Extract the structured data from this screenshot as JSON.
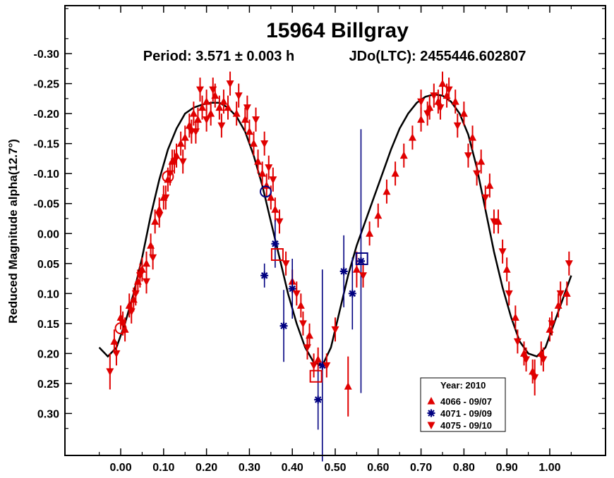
{
  "chart_data": {
    "type": "scatter",
    "title": "15964 Billgray",
    "subtitle_period": "Period: 3.571 ± 0.003 h",
    "subtitle_epoch": "JDo(LTC): 2455446.602807",
    "ylabel": "Reduced Magnitude alpha(12.7°)",
    "xlabel": "",
    "xlim": [
      -0.13,
      1.13
    ],
    "ylim": [
      -0.38,
      0.37
    ],
    "y_inverted": true,
    "x_ticks": [
      0.0,
      0.1,
      0.2,
      0.3,
      0.4,
      0.5,
      0.6,
      0.7,
      0.8,
      0.9,
      1.0
    ],
    "x_tick_labels": [
      "0.00",
      "0.10",
      "0.20",
      "0.30",
      "0.40",
      "0.50",
      "0.60",
      "0.70",
      "0.80",
      "0.90",
      "1.00"
    ],
    "y_ticks": [
      -0.3,
      -0.25,
      -0.2,
      -0.15,
      -0.1,
      -0.05,
      0.0,
      0.05,
      0.1,
      0.15,
      0.2,
      0.25,
      0.3
    ],
    "y_tick_labels": [
      "-0.30",
      "-0.25",
      "-0.20",
      "-0.15",
      "-0.10",
      "-0.05",
      "0.00",
      "0.05",
      "0.10",
      "0.15",
      "0.20",
      "0.25",
      "0.30"
    ],
    "legend": {
      "title": "Year: 2010",
      "position": "bottom-right",
      "entries": [
        {
          "label": "4066 - 09/07",
          "marker": "triangle-up",
          "color": "#e00000"
        },
        {
          "label": "4071 - 09/09",
          "marker": "asterisk",
          "color": "#000080"
        },
        {
          "label": "4075 - 09/10",
          "marker": "triangle-down",
          "color": "#e00000"
        }
      ]
    },
    "colors": {
      "red": "#e00000",
      "navy": "#000080",
      "curve": "#000000"
    },
    "fit_curve": {
      "description": "Fourier fit",
      "x": [
        -0.05,
        -0.03,
        -0.01,
        0.01,
        0.03,
        0.05,
        0.07,
        0.09,
        0.11,
        0.13,
        0.15,
        0.17,
        0.19,
        0.21,
        0.23,
        0.25,
        0.27,
        0.29,
        0.31,
        0.33,
        0.35,
        0.37,
        0.39,
        0.41,
        0.43,
        0.45,
        0.47,
        0.49,
        0.51,
        0.53,
        0.55,
        0.57,
        0.59,
        0.61,
        0.63,
        0.65,
        0.67,
        0.69,
        0.71,
        0.73,
        0.75,
        0.77,
        0.79,
        0.81,
        0.83,
        0.85,
        0.87,
        0.89,
        0.91,
        0.93,
        0.95,
        0.97,
        0.99,
        1.01,
        1.03,
        1.05
      ],
      "y": [
        0.19,
        0.205,
        0.19,
        0.15,
        0.1,
        0.04,
        -0.03,
        -0.09,
        -0.14,
        -0.175,
        -0.2,
        -0.21,
        -0.215,
        -0.218,
        -0.218,
        -0.21,
        -0.195,
        -0.17,
        -0.13,
        -0.08,
        -0.02,
        0.04,
        0.1,
        0.15,
        0.19,
        0.215,
        0.22,
        0.19,
        0.13,
        0.07,
        0.02,
        -0.02,
        -0.06,
        -0.1,
        -0.14,
        -0.175,
        -0.2,
        -0.218,
        -0.228,
        -0.232,
        -0.23,
        -0.22,
        -0.2,
        -0.165,
        -0.11,
        -0.04,
        0.03,
        0.09,
        0.14,
        0.18,
        0.2,
        0.205,
        0.19,
        0.15,
        0.11,
        0.07
      ]
    },
    "series": [
      {
        "name": "4066 - 09/07",
        "marker": "triangle-up",
        "color": "#e00000",
        "points": [
          [
            -0.015,
            0.18,
            0.02
          ],
          [
            0.0,
            0.14,
            0.02
          ],
          [
            0.01,
            0.16,
            0.02
          ],
          [
            0.02,
            0.12,
            0.02
          ],
          [
            0.03,
            0.11,
            0.02
          ],
          [
            0.04,
            0.08,
            0.02
          ],
          [
            0.05,
            0.06,
            0.02
          ],
          [
            0.06,
            0.05,
            0.02
          ],
          [
            0.07,
            0.02,
            0.02
          ],
          [
            0.08,
            -0.02,
            0.02
          ],
          [
            0.09,
            -0.04,
            0.02
          ],
          [
            0.1,
            -0.06,
            0.02
          ],
          [
            0.11,
            -0.09,
            0.02
          ],
          [
            0.12,
            -0.12,
            0.02
          ],
          [
            0.13,
            -0.13,
            0.02
          ],
          [
            0.14,
            -0.15,
            0.02
          ],
          [
            0.15,
            -0.16,
            0.02
          ],
          [
            0.16,
            -0.18,
            0.02
          ],
          [
            0.17,
            -0.2,
            0.02
          ],
          [
            0.18,
            -0.19,
            0.02
          ],
          [
            0.19,
            -0.21,
            0.02
          ],
          [
            0.2,
            -0.22,
            0.02
          ],
          [
            0.21,
            -0.2,
            0.02
          ],
          [
            0.22,
            -0.23,
            0.02
          ],
          [
            0.23,
            -0.21,
            0.02
          ],
          [
            0.24,
            -0.22,
            0.02
          ],
          [
            0.25,
            -0.21,
            0.02
          ],
          [
            0.27,
            -0.2,
            0.02
          ],
          [
            0.29,
            -0.19,
            0.02
          ],
          [
            0.3,
            -0.17,
            0.02
          ],
          [
            0.31,
            -0.15,
            0.02
          ],
          [
            0.32,
            -0.12,
            0.02
          ],
          [
            0.33,
            -0.1,
            0.02
          ],
          [
            0.34,
            -0.08,
            0.02
          ],
          [
            0.35,
            -0.06,
            0.02
          ],
          [
            0.36,
            -0.04,
            0.02
          ],
          [
            0.4,
            0.08,
            0.02
          ],
          [
            0.42,
            0.12,
            0.02
          ],
          [
            0.44,
            0.17,
            0.02
          ],
          [
            0.46,
            0.21,
            0.02
          ],
          [
            0.53,
            0.255,
            0.05
          ],
          [
            0.55,
            0.06,
            0.03
          ],
          [
            0.58,
            0.0,
            0.02
          ],
          [
            0.6,
            -0.03,
            0.02
          ],
          [
            0.62,
            -0.07,
            0.02
          ],
          [
            0.64,
            -0.1,
            0.02
          ],
          [
            0.66,
            -0.13,
            0.02
          ],
          [
            0.68,
            -0.16,
            0.02
          ],
          [
            0.7,
            -0.19,
            0.02
          ],
          [
            0.72,
            -0.21,
            0.02
          ],
          [
            0.74,
            -0.22,
            0.02
          ],
          [
            0.75,
            -0.25,
            0.02
          ],
          [
            0.76,
            -0.23,
            0.02
          ],
          [
            0.78,
            -0.22,
            0.02
          ],
          [
            0.8,
            -0.2,
            0.02
          ],
          [
            0.82,
            -0.16,
            0.02
          ],
          [
            0.84,
            -0.12,
            0.02
          ],
          [
            0.86,
            -0.08,
            0.02
          ],
          [
            0.88,
            -0.02,
            0.02
          ],
          [
            0.9,
            0.06,
            0.02
          ],
          [
            0.92,
            0.14,
            0.02
          ],
          [
            0.94,
            0.2,
            0.02
          ],
          [
            0.96,
            0.23,
            0.02
          ],
          [
            0.98,
            0.2,
            0.02
          ],
          [
            1.0,
            0.16,
            0.02
          ],
          [
            1.02,
            0.12,
            0.02
          ],
          [
            1.04,
            0.1,
            0.02
          ]
        ]
      },
      {
        "name": "4071 - 09/09",
        "marker": "asterisk",
        "color": "#000080",
        "points": [
          [
            0.335,
            0.07,
            0.02
          ],
          [
            0.36,
            0.017,
            0.04
          ],
          [
            0.38,
            0.154,
            0.06
          ],
          [
            0.4,
            0.092,
            0.05
          ],
          [
            0.46,
            0.277,
            0.05
          ],
          [
            0.47,
            0.22,
            0.16
          ],
          [
            0.52,
            0.063,
            0.06
          ],
          [
            0.54,
            0.1,
            0.06
          ],
          [
            0.56,
            0.046,
            0.22
          ]
        ]
      },
      {
        "name": "4075 - 09/10",
        "marker": "triangle-down",
        "color": "#e00000",
        "points": [
          [
            -0.025,
            0.23,
            0.03
          ],
          [
            -0.01,
            0.2,
            0.02
          ],
          [
            0.005,
            0.15,
            0.02
          ],
          [
            0.025,
            0.13,
            0.02
          ],
          [
            0.035,
            0.1,
            0.02
          ],
          [
            0.045,
            0.07,
            0.02
          ],
          [
            0.06,
            0.08,
            0.02
          ],
          [
            0.075,
            0.04,
            0.02
          ],
          [
            0.09,
            -0.03,
            0.02
          ],
          [
            0.105,
            -0.06,
            0.02
          ],
          [
            0.115,
            -0.1,
            0.02
          ],
          [
            0.125,
            -0.12,
            0.02
          ],
          [
            0.145,
            -0.12,
            0.02
          ],
          [
            0.165,
            -0.17,
            0.02
          ],
          [
            0.175,
            -0.17,
            0.02
          ],
          [
            0.185,
            -0.24,
            0.02
          ],
          [
            0.2,
            -0.19,
            0.02
          ],
          [
            0.215,
            -0.24,
            0.02
          ],
          [
            0.235,
            -0.18,
            0.02
          ],
          [
            0.255,
            -0.25,
            0.02
          ],
          [
            0.275,
            -0.23,
            0.02
          ],
          [
            0.295,
            -0.21,
            0.02
          ],
          [
            0.315,
            -0.19,
            0.02
          ],
          [
            0.335,
            -0.15,
            0.02
          ],
          [
            0.345,
            -0.11,
            0.02
          ],
          [
            0.355,
            -0.09,
            0.02
          ],
          [
            0.37,
            -0.02,
            0.02
          ],
          [
            0.385,
            0.05,
            0.02
          ],
          [
            0.41,
            0.1,
            0.02
          ],
          [
            0.425,
            0.15,
            0.02
          ],
          [
            0.435,
            0.19,
            0.02
          ],
          [
            0.45,
            0.22,
            0.02
          ],
          [
            0.48,
            0.22,
            0.02
          ],
          [
            0.5,
            0.16,
            0.02
          ],
          [
            0.565,
            0.07,
            0.02
          ],
          [
            0.7,
            -0.22,
            0.02
          ],
          [
            0.715,
            -0.2,
            0.02
          ],
          [
            0.73,
            -0.23,
            0.02
          ],
          [
            0.745,
            -0.21,
            0.02
          ],
          [
            0.765,
            -0.24,
            0.02
          ],
          [
            0.785,
            -0.18,
            0.02
          ],
          [
            0.81,
            -0.13,
            0.02
          ],
          [
            0.83,
            -0.1,
            0.02
          ],
          [
            0.85,
            -0.06,
            0.02
          ],
          [
            0.87,
            -0.02,
            0.02
          ],
          [
            0.89,
            0.03,
            0.02
          ],
          [
            0.905,
            0.1,
            0.02
          ],
          [
            0.925,
            0.18,
            0.02
          ],
          [
            0.945,
            0.21,
            0.02
          ],
          [
            0.965,
            0.24,
            0.03
          ],
          [
            0.985,
            0.21,
            0.02
          ],
          [
            1.005,
            0.15,
            0.02
          ],
          [
            1.025,
            0.1,
            0.02
          ],
          [
            1.045,
            0.05,
            0.02
          ]
        ]
      }
    ],
    "open_markers": [
      {
        "shape": "circle",
        "color": "#e00000",
        "points": [
          [
            0.0,
            0.158
          ],
          [
            0.11,
            -0.095
          ]
        ]
      },
      {
        "shape": "circle",
        "color": "#000080",
        "points": [
          [
            0.338,
            -0.07
          ]
        ]
      },
      {
        "shape": "square",
        "color": "#e00000",
        "points": [
          [
            0.365,
            0.035
          ],
          [
            0.455,
            0.238
          ]
        ]
      },
      {
        "shape": "square",
        "color": "#000080",
        "points": [
          [
            0.562,
            0.042
          ]
        ]
      }
    ]
  }
}
